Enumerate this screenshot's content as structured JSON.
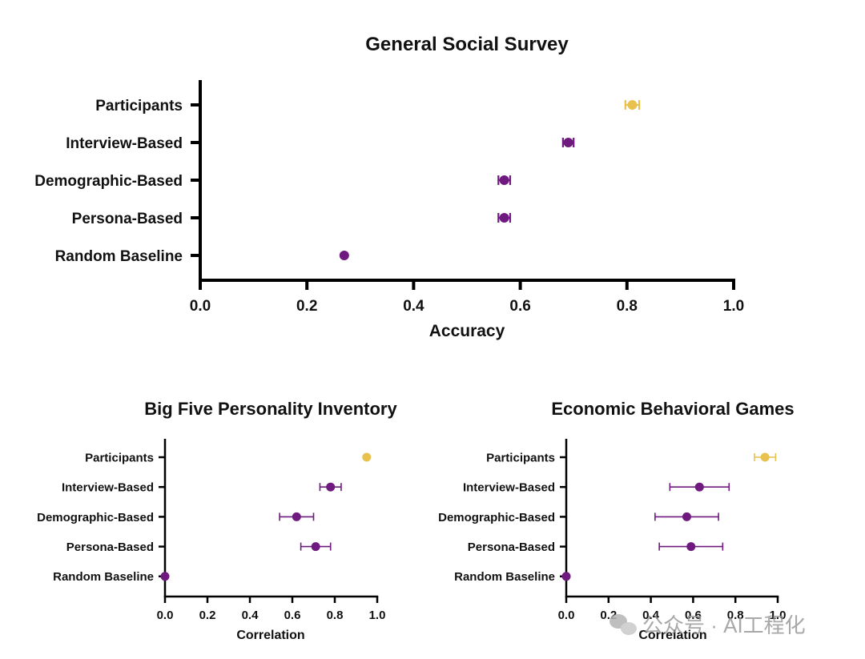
{
  "colors": {
    "participants": "#E8C14E",
    "model": "#6E1A7E",
    "axis": "#000000"
  },
  "chart_data": [
    {
      "type": "scatter",
      "title": "General Social Survey",
      "xlabel": "Accuracy",
      "xlim": [
        0.0,
        1.0
      ],
      "xticks": [
        "0.0",
        "0.2",
        "0.4",
        "0.6",
        "0.8",
        "1.0"
      ],
      "categories": [
        "Participants",
        "Interview-Based",
        "Demographic-Based",
        "Persona-Based",
        "Random Baseline"
      ],
      "values": [
        0.81,
        0.69,
        0.57,
        0.57,
        0.27
      ],
      "errors": [
        0.013,
        0.01,
        0.011,
        0.011,
        0.0
      ]
    },
    {
      "type": "scatter",
      "title": "Big Five Personality Inventory",
      "xlabel": "Correlation",
      "xlim": [
        0.0,
        1.0
      ],
      "xticks": [
        "0.0",
        "0.2",
        "0.4",
        "0.6",
        "0.8",
        "1.0"
      ],
      "categories": [
        "Participants",
        "Interview-Based",
        "Demographic-Based",
        "Persona-Based",
        "Random Baseline"
      ],
      "values": [
        0.95,
        0.78,
        0.62,
        0.71,
        0.0
      ],
      "errors": [
        0.0,
        0.05,
        0.08,
        0.07,
        0.0
      ]
    },
    {
      "type": "scatter",
      "title": "Economic Behavioral Games",
      "xlabel": "Correlation",
      "xlim": [
        0.0,
        1.0
      ],
      "xticks": [
        "0.0",
        "0.2",
        "0.4",
        "0.6",
        "0.8",
        "1.0"
      ],
      "categories": [
        "Participants",
        "Interview-Based",
        "Demographic-Based",
        "Persona-Based",
        "Random Baseline"
      ],
      "values": [
        0.94,
        0.63,
        0.57,
        0.59,
        0.0
      ],
      "errors": [
        0.05,
        0.14,
        0.15,
        0.15,
        0.0
      ]
    }
  ],
  "watermark": "公众号 · AI工程化"
}
